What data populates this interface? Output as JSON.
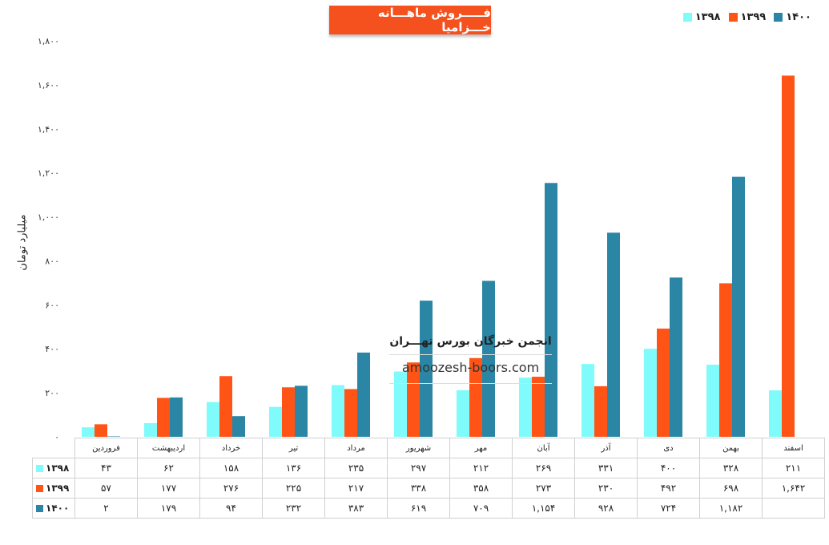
{
  "chart_data": {
    "type": "bar",
    "title": "فـــــروش ماهـــانه خـــزامیا",
    "ylabel": "میلیارد تومان",
    "ylim": [
      0,
      1800
    ],
    "yticks": [
      "۰",
      "۲۰۰",
      "۴۰۰",
      "۶۰۰",
      "۸۰۰",
      "۱,۰۰۰",
      "۱,۲۰۰",
      "۱,۴۰۰",
      "۱,۶۰۰",
      "۱,۸۰۰"
    ],
    "categories": [
      "فروردین",
      "اردیبهشت",
      "خرداد",
      "تیر",
      "مرداد",
      "شهریور",
      "مهر",
      "آبان",
      "آذر",
      "دی",
      "بهمن",
      "اسفند"
    ],
    "series": [
      {
        "name": "۱۳۹۸",
        "color": "#7ffbfb",
        "values": [
          43,
          62,
          158,
          136,
          235,
          297,
          212,
          269,
          331,
          400,
          328,
          211
        ],
        "labels": [
          "۴۳",
          "۶۲",
          "۱۵۸",
          "۱۳۶",
          "۲۳۵",
          "۲۹۷",
          "۲۱۲",
          "۲۶۹",
          "۳۳۱",
          "۴۰۰",
          "۳۲۸",
          "۲۱۱"
        ]
      },
      {
        "name": "۱۳۹۹",
        "color": "#ff5416",
        "values": [
          57,
          177,
          276,
          225,
          217,
          338,
          358,
          273,
          230,
          492,
          698,
          1642
        ],
        "labels": [
          "۵۷",
          "۱۷۷",
          "۲۷۶",
          "۲۲۵",
          "۲۱۷",
          "۳۳۸",
          "۳۵۸",
          "۲۷۳",
          "۲۳۰",
          "۴۹۲",
          "۶۹۸",
          "۱,۶۴۲"
        ]
      },
      {
        "name": "۱۴۰۰",
        "color": "#2a86a4",
        "values": [
          2,
          179,
          94,
          232,
          383,
          619,
          709,
          1154,
          928,
          724,
          1182,
          null
        ],
        "labels": [
          "۲",
          "۱۷۹",
          "۹۴",
          "۲۳۲",
          "۳۸۳",
          "۶۱۹",
          "۷۰۹",
          "۱,۱۵۴",
          "۹۲۸",
          "۷۲۴",
          "۱,۱۸۲",
          ""
        ]
      }
    ],
    "legend_position": "top-right",
    "grid": false
  },
  "watermark": {
    "line1": "انجمن خبرگان بورس تهـــران",
    "line2": "amoozesh-boors.com"
  }
}
